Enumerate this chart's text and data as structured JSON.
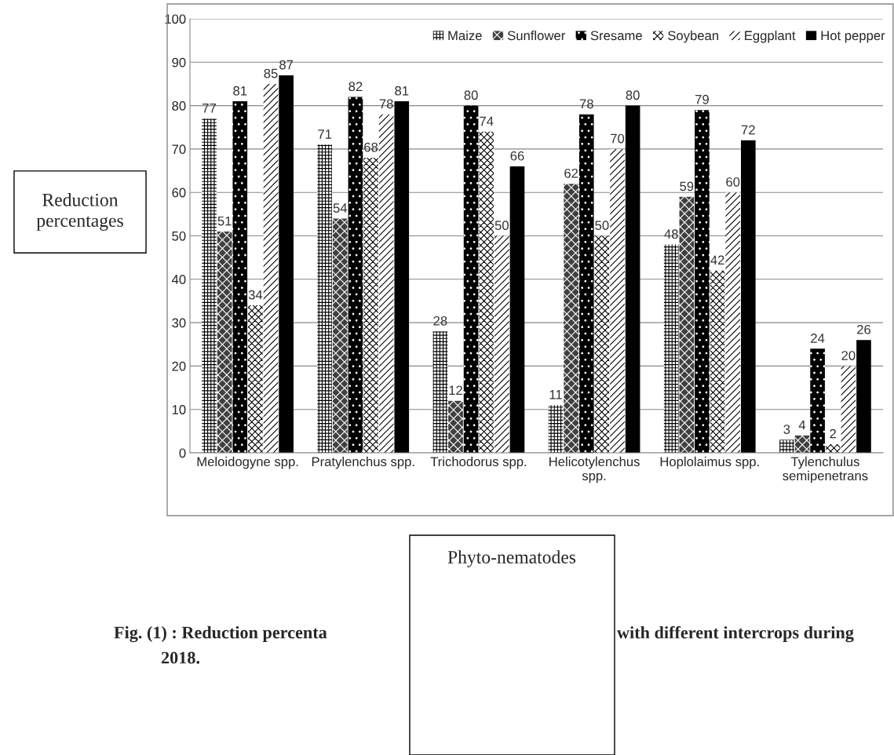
{
  "chart_data": {
    "type": "bar",
    "xlabel": "Phyto-nematodes",
    "ylabel": "Reduction\npercentages",
    "categories": [
      "Meloidogyne spp.",
      "Pratylenchus spp.",
      "Trichodorus spp.",
      "Helicotylenchus\nspp.",
      "Hoplolaimus spp.",
      "Tylenchulus\nsemipenetrans"
    ],
    "series": [
      {
        "name": "Maize",
        "color": "#ffffff",
        "values": [
          77,
          71,
          28,
          11,
          48,
          3
        ]
      },
      {
        "name": "Sunflower",
        "color": "#404040",
        "values": [
          51,
          54,
          12,
          62,
          59,
          4
        ]
      },
      {
        "name": "Sresame",
        "color": "#000000",
        "values": [
          81,
          82,
          80,
          78,
          79,
          24
        ]
      },
      {
        "name": "Soybean",
        "color": "#ffffff",
        "values": [
          34,
          68,
          74,
          50,
          42,
          2
        ]
      },
      {
        "name": "Eggplant",
        "color": "#ffffff",
        "values": [
          85,
          78,
          50,
          70,
          60,
          20
        ]
      },
      {
        "name": "Hot pepper",
        "color": "#000000",
        "values": [
          87,
          81,
          66,
          80,
          72,
          26
        ]
      }
    ],
    "ylim": [
      0,
      100
    ],
    "yticks": [
      0,
      10,
      20,
      30,
      40,
      50,
      60,
      70,
      80,
      90,
      100
    ],
    "grid": "y",
    "legend": "top right",
    "data_labels": true,
    "annotations": [
      "Fig. (1) : Reduction percenta",
      "with different intercrops during",
      "2018."
    ]
  }
}
